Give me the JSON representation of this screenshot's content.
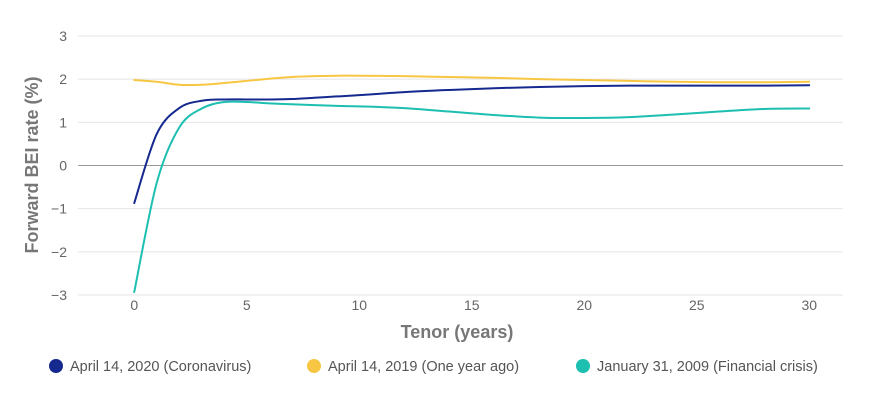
{
  "chart_data": {
    "type": "line",
    "title": "",
    "xlabel": "Tenor (years)",
    "ylabel": "Forward BEI rate (%)",
    "xlim": [
      -2.5,
      31.5
    ],
    "ylim": [
      -3,
      3
    ],
    "xticks": [
      0,
      5,
      10,
      15,
      20,
      25,
      30
    ],
    "yticks": [
      -3,
      -2,
      -1,
      0,
      1,
      2,
      3
    ],
    "ytick_labels": [
      "−3",
      "−2",
      "−1",
      "0",
      "1",
      "2",
      "3"
    ],
    "grid": true,
    "legend_position": "bottom",
    "series": [
      {
        "name": "April 14, 2020 (Coronavirus)",
        "color": "#15298f",
        "x": [
          0,
          1,
          2,
          3,
          4,
          5,
          6,
          7,
          8,
          9,
          10,
          12,
          14,
          16,
          18,
          20,
          22,
          24,
          26,
          28,
          30
        ],
        "values": [
          -0.87,
          0.73,
          1.33,
          1.5,
          1.53,
          1.53,
          1.53,
          1.54,
          1.57,
          1.6,
          1.63,
          1.7,
          1.75,
          1.79,
          1.82,
          1.84,
          1.85,
          1.85,
          1.85,
          1.85,
          1.86
        ]
      },
      {
        "name": "April 14, 2019 (One year ago)",
        "color": "#f7c744",
        "x": [
          0,
          1,
          2,
          3,
          4,
          5,
          6,
          7,
          8,
          9,
          10,
          12,
          14,
          16,
          18,
          20,
          22,
          24,
          26,
          28,
          30
        ],
        "values": [
          1.98,
          1.94,
          1.87,
          1.87,
          1.91,
          1.96,
          2.01,
          2.05,
          2.07,
          2.08,
          2.08,
          2.07,
          2.05,
          2.03,
          2.0,
          1.98,
          1.96,
          1.94,
          1.93,
          1.93,
          1.94
        ]
      },
      {
        "name": "January 31, 2009 (Financial crisis)",
        "color": "#1cbfb0",
        "x": [
          0,
          1,
          2,
          3,
          4,
          5,
          6,
          7,
          8,
          9,
          10,
          12,
          14,
          16,
          18,
          20,
          22,
          24,
          26,
          28,
          30
        ],
        "values": [
          -2.93,
          -0.4,
          0.88,
          1.32,
          1.47,
          1.47,
          1.44,
          1.42,
          1.4,
          1.38,
          1.37,
          1.33,
          1.25,
          1.17,
          1.11,
          1.1,
          1.12,
          1.18,
          1.25,
          1.31,
          1.32
        ]
      }
    ]
  }
}
